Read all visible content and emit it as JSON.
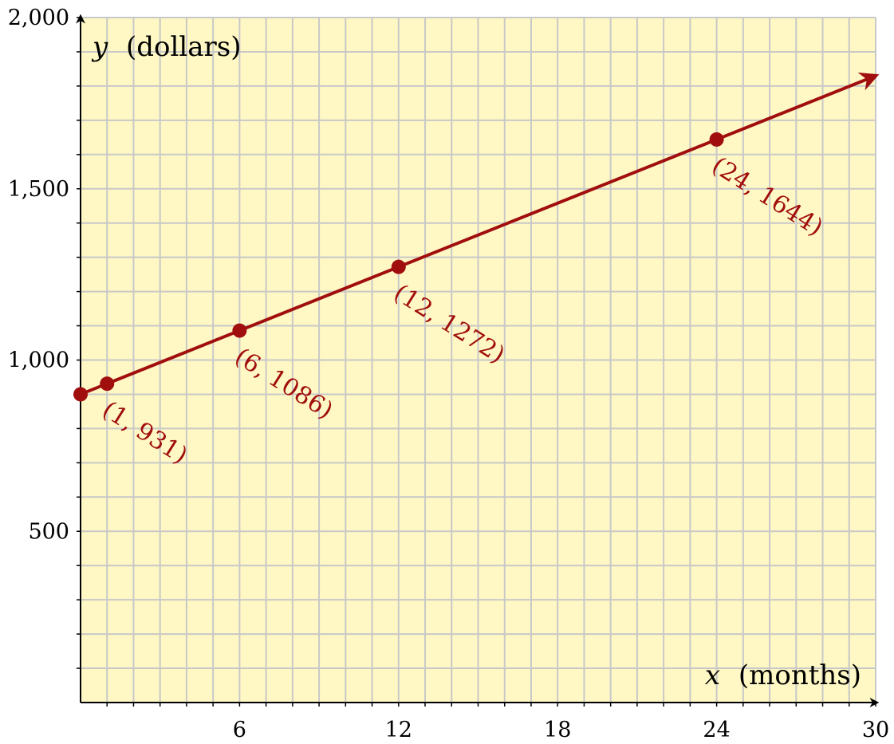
{
  "chart_data": {
    "type": "line",
    "title": "",
    "xlabel": {
      "var": "x",
      "unit": "(months)"
    },
    "ylabel": {
      "var": "y",
      "unit": "(dollars)"
    },
    "xlim": [
      0,
      30
    ],
    "ylim": [
      0,
      2000
    ],
    "x_ticks": [
      6,
      12,
      18,
      24,
      30
    ],
    "x_tick_labels": [
      "6",
      "12",
      "18",
      "24",
      "30"
    ],
    "y_ticks": [
      500,
      1000,
      1500,
      2000
    ],
    "y_tick_labels": [
      "500",
      "1,000",
      "1,500",
      "2,000"
    ],
    "x_grid_step": 1,
    "y_grid_step": 100,
    "grid": true,
    "line": {
      "slope": 31,
      "intercept": 900,
      "x_end": 30,
      "arrow": true
    },
    "points": [
      {
        "x": 0,
        "y": 900,
        "label": ""
      },
      {
        "x": 1,
        "y": 931,
        "label": "(1, 931)"
      },
      {
        "x": 6,
        "y": 1086,
        "label": "(6, 1086)"
      },
      {
        "x": 12,
        "y": 1272,
        "label": "(12, 1272)"
      },
      {
        "x": 24,
        "y": 1644,
        "label": "(24, 1644)"
      }
    ],
    "colors": {
      "background": "#fff8c4",
      "grid": "#c8c8c8",
      "line": "#a00e0e",
      "axis": "#000000"
    }
  }
}
